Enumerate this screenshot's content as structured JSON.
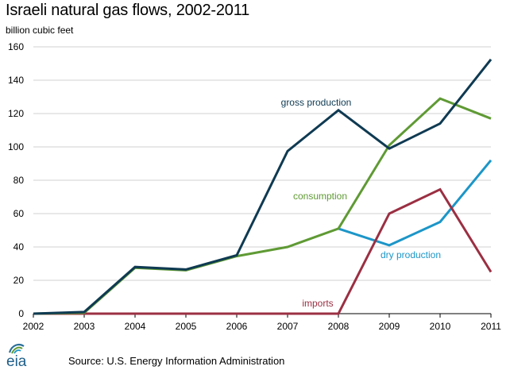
{
  "title": "Israeli natural gas flows, 2002-2011",
  "subtitle": "billion cubic feet",
  "source": "Source:  U.S. Energy Information  Administration",
  "logo_text": "eia",
  "chart_data": {
    "type": "line",
    "x": [
      2002,
      2003,
      2004,
      2005,
      2006,
      2007,
      2008,
      2009,
      2010,
      2011
    ],
    "xticks": [
      "2002",
      "2003",
      "2004",
      "2005",
      "2006",
      "2007",
      "2008",
      "2009",
      "2010",
      "2011"
    ],
    "ylim": [
      0,
      160
    ],
    "yticks": [
      0,
      20,
      40,
      60,
      80,
      100,
      120,
      140,
      160
    ],
    "grid": "horizontal",
    "series": [
      {
        "name": "gross production",
        "color": "#0f3a52",
        "values": [
          0,
          1,
          28,
          26.5,
          35,
          97.5,
          122,
          99,
          114,
          152.5
        ]
      },
      {
        "name": "consumption",
        "color": "#5f9a34",
        "values": [
          0,
          0.5,
          27.5,
          26,
          34.5,
          40,
          51,
          101,
          129,
          117
        ]
      },
      {
        "name": "dry production",
        "color": "#1c96c8",
        "x": [
          2008,
          2009,
          2010,
          2011
        ],
        "values": [
          51,
          41,
          55,
          92
        ]
      },
      {
        "name": "imports",
        "color": "#9b2f42",
        "values": [
          0,
          0,
          0,
          0,
          0,
          0,
          0,
          60,
          74.5,
          25
        ]
      }
    ],
    "annotations": [
      {
        "text": "gross production",
        "series": "gross production"
      },
      {
        "text": "consumption",
        "series": "consumption"
      },
      {
        "text": "dry production",
        "series": "dry production"
      },
      {
        "text": "imports",
        "series": "imports"
      }
    ]
  }
}
